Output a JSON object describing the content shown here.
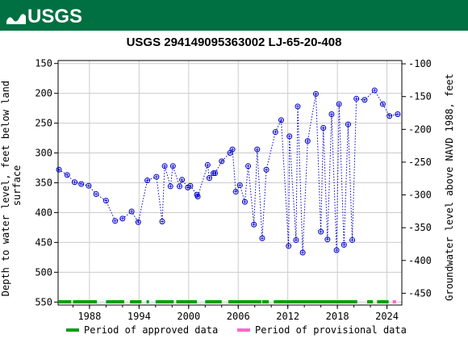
{
  "header": {
    "logo_text": "USGS"
  },
  "colors": {
    "banner": "#006f41",
    "series": "#0000cc",
    "approved": "#00a000",
    "provisional": "#ff66cc"
  },
  "chart_data": {
    "type": "scatter",
    "title": "USGS 294149095363002 LJ-65-20-408",
    "xlabel": "",
    "ylabel_left": "Depth to water level, feet below land surface",
    "ylabel_right": "Groundwater level above NAVD 1988, feet",
    "xlim": [
      1984.2,
      2025.8
    ],
    "ylim_left": [
      145,
      555
    ],
    "ylim_right": [
      -95,
      -468
    ],
    "left_inverted": true,
    "grid": true,
    "x_ticks": [
      1988,
      1994,
      2000,
      2006,
      2012,
      2018,
      2024
    ],
    "y_ticks_left": [
      150,
      200,
      250,
      300,
      350,
      400,
      450,
      500,
      550
    ],
    "y_ticks_right": [
      -100,
      -150,
      -200,
      -250,
      -300,
      -350,
      -400,
      -450
    ],
    "series": [
      {
        "x": [
          1984.3,
          1985.3,
          1986.2,
          1987.0,
          1987.9,
          1988.8,
          1990.0,
          1991.1,
          1992.0,
          1993.1,
          1993.9,
          1995.0,
          1996.1,
          1996.8,
          1997.1,
          1997.8,
          1998.1,
          1998.9,
          1999.2,
          1999.9,
          2000.2,
          2001.0,
          2001.1,
          2002.3,
          2002.5,
          2003.0,
          2003.2,
          2004.0,
          2005.0,
          2005.3,
          2005.7,
          2006.2,
          2006.8,
          2007.2,
          2007.9,
          2008.3,
          2008.9,
          2009.4,
          2010.5,
          2011.2,
          2012.1,
          2012.2,
          2013.0,
          2013.2,
          2013.8,
          2014.4,
          2015.4,
          2016.0,
          2016.3,
          2016.8,
          2017.3,
          2017.9,
          2018.2,
          2018.8,
          2019.3,
          2019.8,
          2020.3,
          2021.3,
          2022.5,
          2023.5,
          2024.3,
          2025.3
        ],
        "y": [
          328,
          337,
          349,
          352,
          355,
          369,
          380,
          414,
          410,
          398,
          416,
          346,
          340,
          415,
          322,
          356,
          322,
          356,
          345,
          358,
          355,
          370,
          373,
          320,
          342,
          334,
          334,
          314,
          300,
          294,
          365,
          354,
          382,
          322,
          420,
          294,
          443,
          328,
          265,
          245,
          456,
          272,
          446,
          222,
          467,
          280,
          201,
          432,
          258,
          445,
          235,
          463,
          218,
          454,
          252,
          446,
          209,
          211,
          195,
          218,
          238,
          235
        ]
      }
    ],
    "legend": [
      "Period of approved data",
      "Period of provisional data"
    ],
    "approved_periods": [
      [
        1984.2,
        1985.8
      ],
      [
        1986.0,
        1988.9
      ],
      [
        1990.0,
        1992.2
      ],
      [
        1992.9,
        1994.3
      ],
      [
        1994.9,
        1995.2
      ],
      [
        1996.0,
        1998.2
      ],
      [
        1998.5,
        2001.0
      ],
      [
        2002.0,
        2004.0
      ],
      [
        2004.8,
        2008.8
      ],
      [
        2008.9,
        2009.7
      ],
      [
        2010.3,
        2020.4
      ],
      [
        2021.6,
        2022.3
      ],
      [
        2022.8,
        2024.2
      ]
    ],
    "provisional_periods": [
      [
        2024.7,
        2025.1
      ]
    ]
  }
}
